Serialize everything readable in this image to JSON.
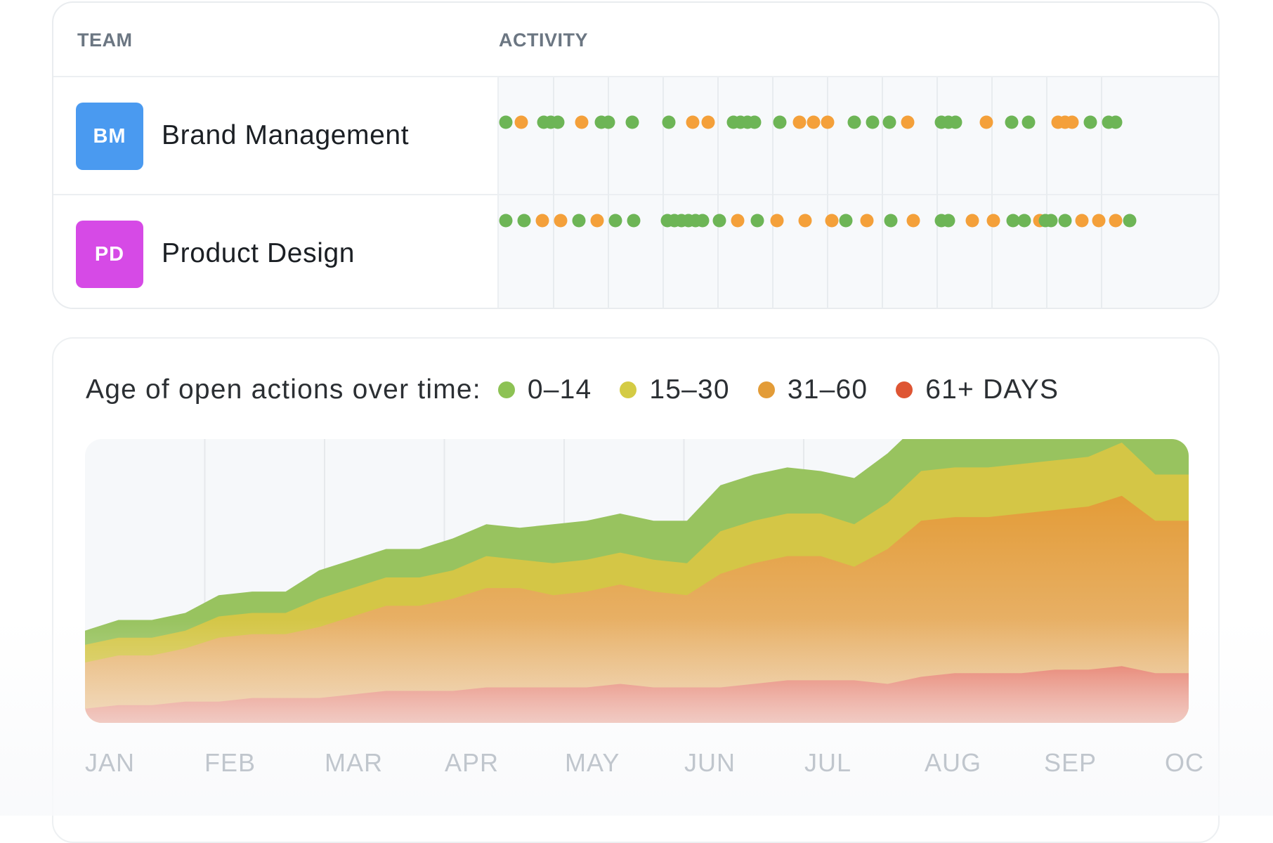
{
  "table": {
    "headers": {
      "team": "TEAM",
      "activity": "ACTIVITY"
    },
    "teams": [
      {
        "initials": "BM",
        "name": "Brand Management",
        "avatar_color": "#4a9af0",
        "activity": [
          [
            "green",
            "orange",
            "green",
            "green",
            "green",
            "orange",
            "green",
            "green",
            "green",
            "green",
            "orange",
            "orange",
            "green",
            "green",
            "green",
            "green",
            "green",
            "orange",
            "orange",
            "orange",
            "green",
            "green",
            "green",
            "orange",
            "green",
            "green",
            "green",
            "orange",
            "green",
            "green",
            "orange",
            "orange",
            "orange",
            "green",
            "green",
            "green"
          ]
        ]
      },
      {
        "initials": "PD",
        "name": "Product Design",
        "avatar_color": "#d64ae6",
        "activity": [
          [
            "green",
            "green",
            "orange",
            "orange",
            "green",
            "orange",
            "green",
            "green",
            "green",
            "green",
            "green",
            "green",
            "green",
            "green",
            "green",
            "orange",
            "green",
            "orange",
            "orange",
            "orange",
            "green",
            "orange",
            "green",
            "orange",
            "green",
            "green",
            "orange",
            "orange",
            "green",
            "green",
            "orange",
            "green",
            "green",
            "green",
            "orange",
            "orange",
            "orange",
            "green"
          ]
        ]
      }
    ],
    "status_colors": {
      "green": "#6db556",
      "orange": "#f4a03a"
    }
  },
  "chart": {
    "legend_title": "Age of open actions over time:",
    "legend": [
      {
        "label": "0–14",
        "color": "#8dc254"
      },
      {
        "label": "15–30",
        "color": "#d4cb44"
      },
      {
        "label": "31–60",
        "color": "#e39c38"
      },
      {
        "label": "61+ DAYS",
        "color": "#de5533"
      }
    ],
    "months": [
      "JAN",
      "FEB",
      "MAR",
      "APR",
      "MAY",
      "JUN",
      "JUL",
      "AUG",
      "SEP",
      "OC"
    ]
  },
  "chart_data": {
    "type": "area",
    "stacked": true,
    "x": [
      "JAN",
      "JAN",
      "JAN",
      "JAN",
      "FEB",
      "FEB",
      "FEB",
      "MAR",
      "MAR",
      "MAR",
      "MAR",
      "APR",
      "APR",
      "APR",
      "APR",
      "MAY",
      "MAY",
      "MAY",
      "MAY",
      "JUN",
      "JUN",
      "JUN",
      "JUL",
      "JUL",
      "JUL",
      "AUG",
      "AUG",
      "AUG",
      "SEP",
      "SEP",
      "SEP",
      "SEP",
      "OC",
      "OC"
    ],
    "series": [
      {
        "name": "61+ DAYS",
        "values": [
          4,
          5,
          5,
          6,
          6,
          7,
          7,
          7,
          8,
          9,
          9,
          9,
          10,
          10,
          10,
          10,
          11,
          10,
          10,
          10,
          11,
          12,
          12,
          12,
          11,
          13,
          14,
          14,
          14,
          15,
          15,
          16,
          14,
          14
        ]
      },
      {
        "name": "31–60",
        "values": [
          13,
          14,
          14,
          15,
          18,
          18,
          18,
          20,
          22,
          24,
          24,
          26,
          28,
          28,
          26,
          27,
          28,
          27,
          26,
          32,
          34,
          35,
          35,
          32,
          38,
          44,
          44,
          44,
          45,
          45,
          46,
          48,
          43,
          43
        ]
      },
      {
        "name": "15–30",
        "values": [
          5,
          5,
          5,
          5,
          6,
          6,
          6,
          8,
          8,
          8,
          8,
          8,
          9,
          8,
          9,
          9,
          9,
          9,
          9,
          12,
          12,
          12,
          12,
          12,
          13,
          14,
          14,
          14,
          14,
          14,
          14,
          15,
          13,
          13
        ]
      },
      {
        "name": "0–14",
        "values": [
          4,
          5,
          5,
          5,
          6,
          6,
          6,
          8,
          8,
          8,
          8,
          9,
          9,
          9,
          11,
          11,
          11,
          11,
          12,
          13,
          13,
          13,
          12,
          13,
          14,
          14,
          14,
          14,
          15,
          15,
          16,
          23,
          15,
          14
        ]
      }
    ],
    "xlabels": [
      "JAN",
      "FEB",
      "MAR",
      "APR",
      "MAY",
      "JUN",
      "JUL",
      "AUG",
      "SEP",
      "OC"
    ],
    "title": "Age of open actions over time:",
    "grid": true,
    "legend_position": "top"
  }
}
